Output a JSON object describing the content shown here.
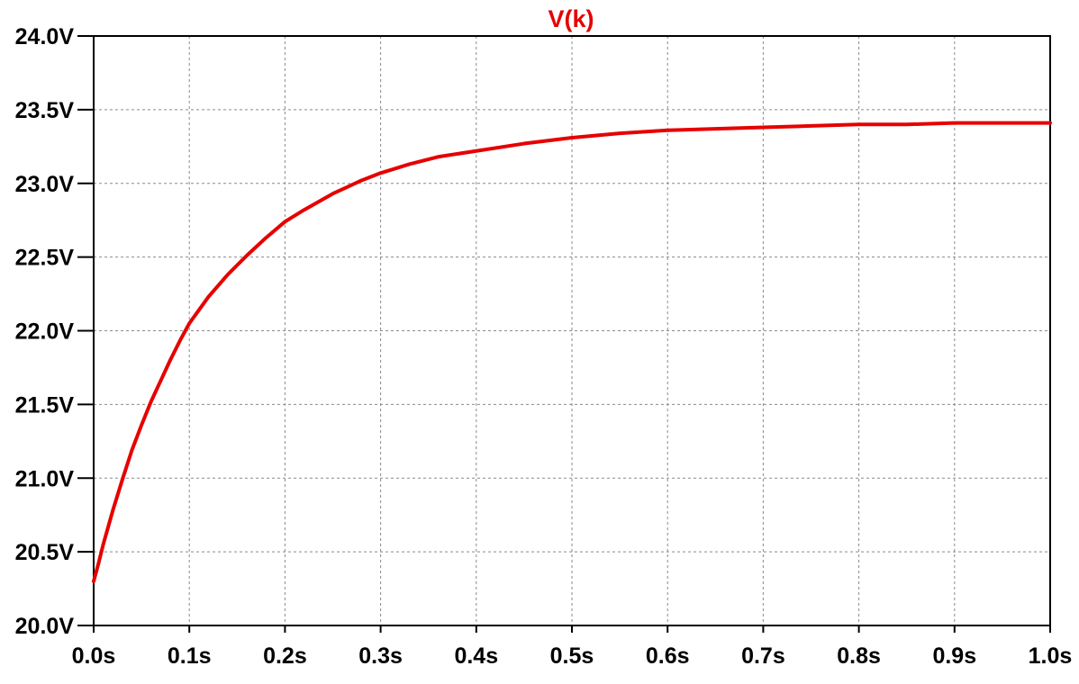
{
  "chart_data": {
    "type": "line",
    "title": "V(k)",
    "title_color": "#e60000",
    "xlabel": "",
    "ylabel": "",
    "xlim": [
      0.0,
      1.0
    ],
    "ylim": [
      20.0,
      24.0
    ],
    "grid": true,
    "x_ticks": [
      0.0,
      0.1,
      0.2,
      0.3,
      0.4,
      0.5,
      0.6,
      0.7,
      0.8,
      0.9,
      1.0
    ],
    "x_tick_labels": [
      "0.0s",
      "0.1s",
      "0.2s",
      "0.3s",
      "0.4s",
      "0.5s",
      "0.6s",
      "0.7s",
      "0.8s",
      "0.9s",
      "1.0s"
    ],
    "y_ticks": [
      20.0,
      20.5,
      21.0,
      21.5,
      22.0,
      22.5,
      23.0,
      23.5,
      24.0
    ],
    "y_tick_labels": [
      "20.0V",
      "20.5V",
      "21.0V",
      "21.5V",
      "22.0V",
      "22.5V",
      "23.0V",
      "23.5V",
      "24.0V"
    ],
    "series": [
      {
        "name": "V(k)",
        "color": "#e60000",
        "x": [
          0.0,
          0.005,
          0.01,
          0.02,
          0.03,
          0.04,
          0.05,
          0.06,
          0.07,
          0.08,
          0.09,
          0.1,
          0.12,
          0.14,
          0.16,
          0.18,
          0.2,
          0.22,
          0.25,
          0.28,
          0.3,
          0.33,
          0.36,
          0.4,
          0.45,
          0.5,
          0.55,
          0.6,
          0.65,
          0.7,
          0.75,
          0.8,
          0.85,
          0.9,
          0.95,
          1.0
        ],
        "y": [
          20.3,
          20.42,
          20.55,
          20.78,
          20.99,
          21.19,
          21.36,
          21.52,
          21.66,
          21.8,
          21.93,
          22.05,
          22.23,
          22.38,
          22.51,
          22.63,
          22.74,
          22.82,
          22.93,
          23.02,
          23.07,
          23.13,
          23.18,
          23.22,
          23.27,
          23.31,
          23.34,
          23.36,
          23.37,
          23.38,
          23.39,
          23.4,
          23.4,
          23.41,
          23.41,
          23.41
        ]
      }
    ]
  }
}
